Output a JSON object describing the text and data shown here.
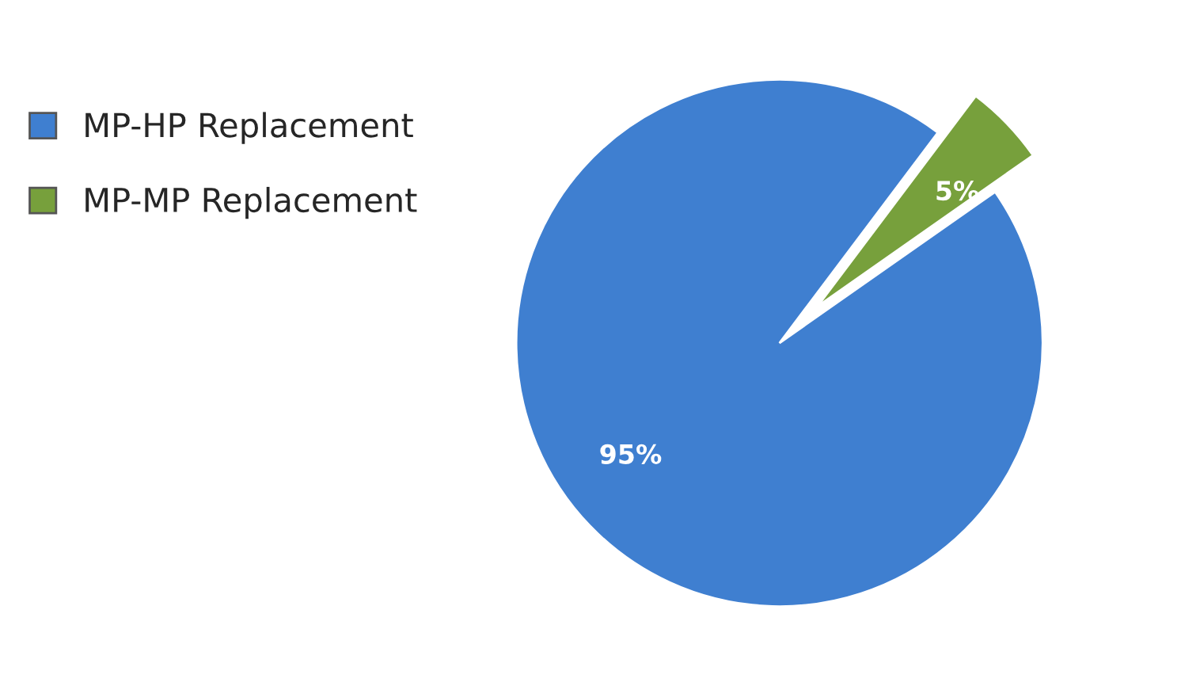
{
  "chart_data": {
    "type": "pie",
    "categories": [
      "MP-HP Replacement",
      "MP-MP Replacement"
    ],
    "values": [
      95,
      5
    ],
    "colors": [
      "#3f7fd0",
      "#77a03c"
    ],
    "value_labels": [
      "95%",
      "5%"
    ],
    "legend": "top left"
  }
}
